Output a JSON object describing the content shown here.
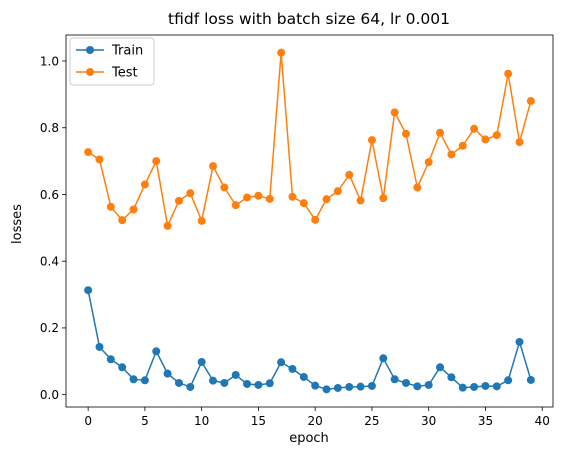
{
  "chart_data": {
    "type": "line",
    "title": "tfidf loss with batch size 64, lr 0.001",
    "xlabel": "epoch",
    "ylabel": "losses",
    "xlim": [
      -1.95,
      40.95
    ],
    "ylim": [
      -0.037,
      1.078
    ],
    "xticks": [
      0,
      5,
      10,
      15,
      20,
      25,
      30,
      35,
      40
    ],
    "yticks": [
      0.0,
      0.2,
      0.4,
      0.6,
      0.8,
      1.0
    ],
    "grid": false,
    "legend_position": "top-left",
    "x": [
      0,
      1,
      2,
      3,
      4,
      5,
      6,
      7,
      8,
      9,
      10,
      11,
      12,
      13,
      14,
      15,
      16,
      17,
      18,
      19,
      20,
      21,
      22,
      23,
      24,
      25,
      26,
      27,
      28,
      29,
      30,
      31,
      32,
      33,
      34,
      35,
      36,
      37,
      38,
      39
    ],
    "series": [
      {
        "name": "Train",
        "color": "#1f77b4",
        "values": [
          0.313,
          0.143,
          0.106,
          0.082,
          0.046,
          0.043,
          0.13,
          0.063,
          0.035,
          0.023,
          0.098,
          0.042,
          0.035,
          0.059,
          0.032,
          0.029,
          0.034,
          0.097,
          0.077,
          0.053,
          0.027,
          0.016,
          0.02,
          0.023,
          0.024,
          0.026,
          0.109,
          0.046,
          0.035,
          0.025,
          0.029,
          0.082,
          0.052,
          0.021,
          0.023,
          0.026,
          0.025,
          0.043,
          0.158,
          0.044
        ]
      },
      {
        "name": "Test",
        "color": "#ff7f0e",
        "values": [
          0.727,
          0.705,
          0.563,
          0.523,
          0.555,
          0.63,
          0.7,
          0.506,
          0.581,
          0.604,
          0.521,
          0.685,
          0.621,
          0.568,
          0.591,
          0.596,
          0.587,
          1.025,
          0.593,
          0.574,
          0.524,
          0.586,
          0.61,
          0.659,
          0.582,
          0.763,
          0.589,
          0.846,
          0.782,
          0.621,
          0.697,
          0.785,
          0.72,
          0.746,
          0.797,
          0.765,
          0.778,
          0.962,
          0.757,
          0.88
        ]
      }
    ]
  }
}
